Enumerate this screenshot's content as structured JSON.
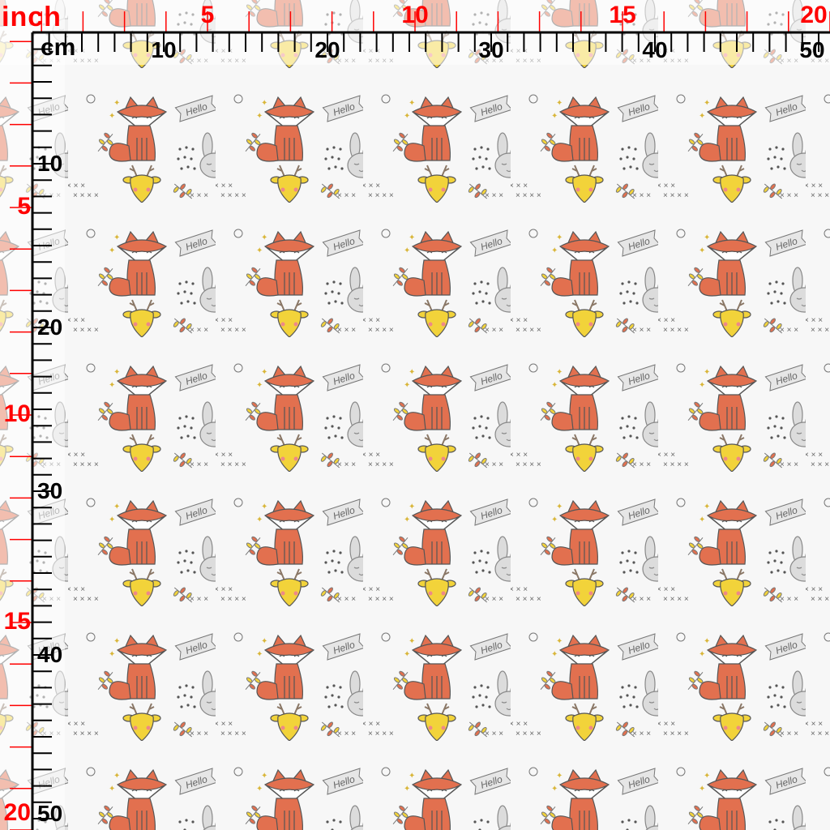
{
  "ruler": {
    "inch_unit": "inch",
    "cm_unit": "cm",
    "inch_labels_top": [
      "5",
      "10",
      "15",
      "20"
    ],
    "inch_labels_left": [
      "5",
      "10",
      "15",
      "20"
    ],
    "cm_labels_top": [
      "10",
      "20",
      "30",
      "40",
      "50"
    ],
    "cm_labels_left": [
      "10",
      "20",
      "30",
      "40",
      "50"
    ],
    "inch_color": "#ff0000",
    "cm_color": "#000000"
  },
  "pattern": {
    "sign_text": "Hello",
    "motifs": [
      "fox",
      "bunny",
      "deer",
      "leaf-sprig",
      "crosses",
      "rain-drops",
      "spiral",
      "heart",
      "sparkle",
      "hello-banner"
    ],
    "colors": {
      "background": "#f7f7f7",
      "fox": "#e2704f",
      "deer": "#f2d33a",
      "bunny": "#dcdcdc",
      "line": "#555555",
      "leaf_red": "#e2704f",
      "leaf_yellow": "#f2d33a"
    }
  }
}
